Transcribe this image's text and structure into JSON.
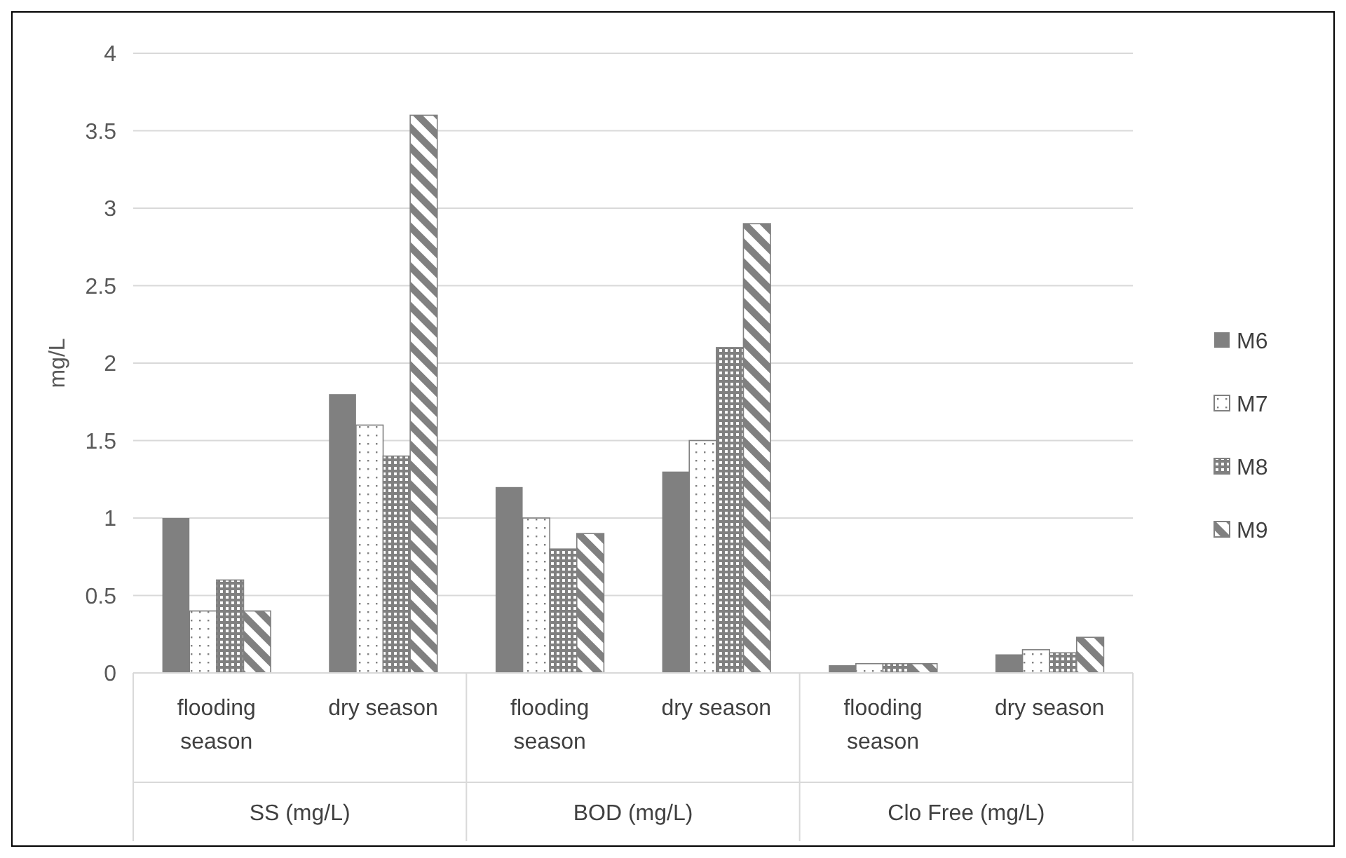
{
  "chart_data": {
    "type": "bar",
    "ylabel": "mg/L",
    "categories": [
      "flooding season",
      "dry season",
      "flooding season",
      "dry season",
      "flooding season",
      "dry season"
    ],
    "annotations": [
      "SS (mg/L)",
      "BOD (mg/L)",
      "Clo Free (mg/L)"
    ],
    "series": [
      {
        "name": "M6",
        "color": "#808080",
        "values": [
          1.0,
          1.8,
          1.2,
          1.3,
          0.05,
          0.12
        ]
      },
      {
        "name": "M7",
        "color": "#808080",
        "values": [
          0.4,
          1.6,
          1.0,
          1.5,
          0.06,
          0.15
        ]
      },
      {
        "name": "M8",
        "color": "#808080",
        "values": [
          0.6,
          1.4,
          0.8,
          2.1,
          0.06,
          0.13
        ]
      },
      {
        "name": "M9",
        "color": "#808080",
        "values": [
          0.4,
          3.6,
          0.9,
          2.9,
          0.06,
          0.23
        ]
      }
    ],
    "ylim": [
      0,
      4
    ],
    "yticks": [
      0,
      0.5,
      1,
      1.5,
      2,
      2.5,
      3,
      3.5,
      4
    ],
    "grid": "y",
    "legend": "right"
  }
}
